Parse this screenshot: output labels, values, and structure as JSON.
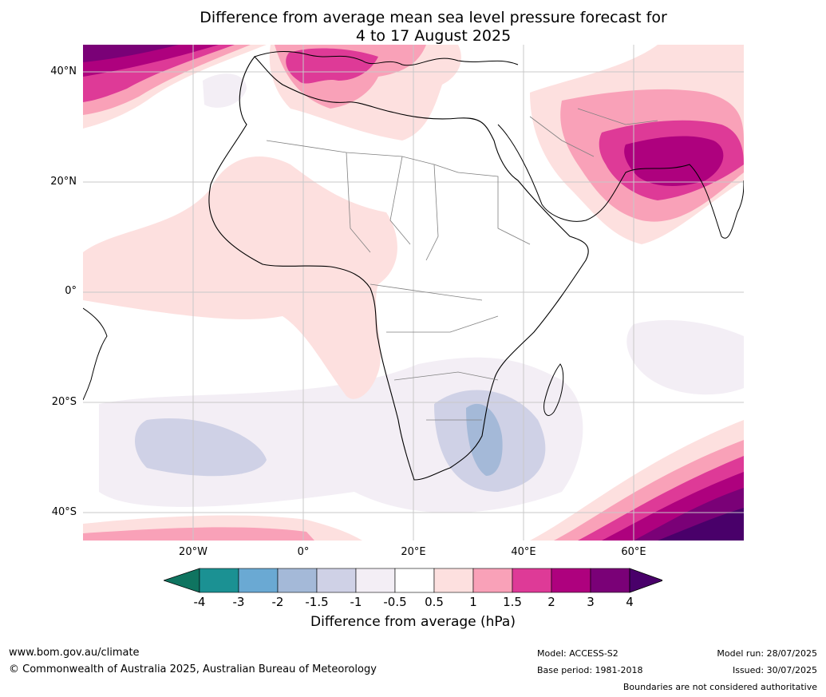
{
  "title": {
    "line1": "Difference from average mean sea level pressure forecast for",
    "line2": "4 to 17 August 2025"
  },
  "map": {
    "region": "Africa, Mediterranean, Arabian Peninsula, Indian Ocean",
    "lat_labels": [
      "40°N",
      "20°N",
      "0°",
      "20°S",
      "40°S"
    ],
    "lon_labels": [
      "20°W",
      "0°",
      "20°E",
      "40°E",
      "60°E"
    ],
    "lat_range": [
      -45,
      45
    ],
    "lon_range": [
      -40,
      80
    ],
    "features": [
      "Positive anomalies (up to 3 hPa) over Mediterranean and Arabian Sea / Pakistan",
      "Strong positive anomalies (3-4+ hPa) in far south-east Indian Ocean and north-west corner",
      "Weak negative anomalies (-0.5 to -1.5) over southern Africa and South Atlantic"
    ]
  },
  "colorbar": {
    "label": "Difference from average (hPa)",
    "ticks": [
      "-4",
      "-3",
      "-2",
      "-1.5",
      "-1",
      "-0.5",
      "0.5",
      "1",
      "1.5",
      "2",
      "3",
      "4"
    ],
    "colors": [
      "#1b9193",
      "#6aa9d3",
      "#a4b9d8",
      "#cfd1e6",
      "#f3eef5",
      "#ffffff",
      "#fde0df",
      "#f9a1b8",
      "#de3a97",
      "#ae017e",
      "#7a0177"
    ],
    "under_color": "#0f7460",
    "over_color": "#49006a"
  },
  "footer": {
    "website": "www.bom.gov.au/climate",
    "copyright": "© Commonwealth of Australia 2025, Australian Bureau of Meteorology",
    "model": "Model: ACCESS-S2",
    "base_period": "Base period: 1981-2018",
    "model_run": "Model run: 28/07/2025",
    "issued": "Issued: 30/07/2025",
    "disclaimer": "Boundaries are not considered authoritative"
  }
}
